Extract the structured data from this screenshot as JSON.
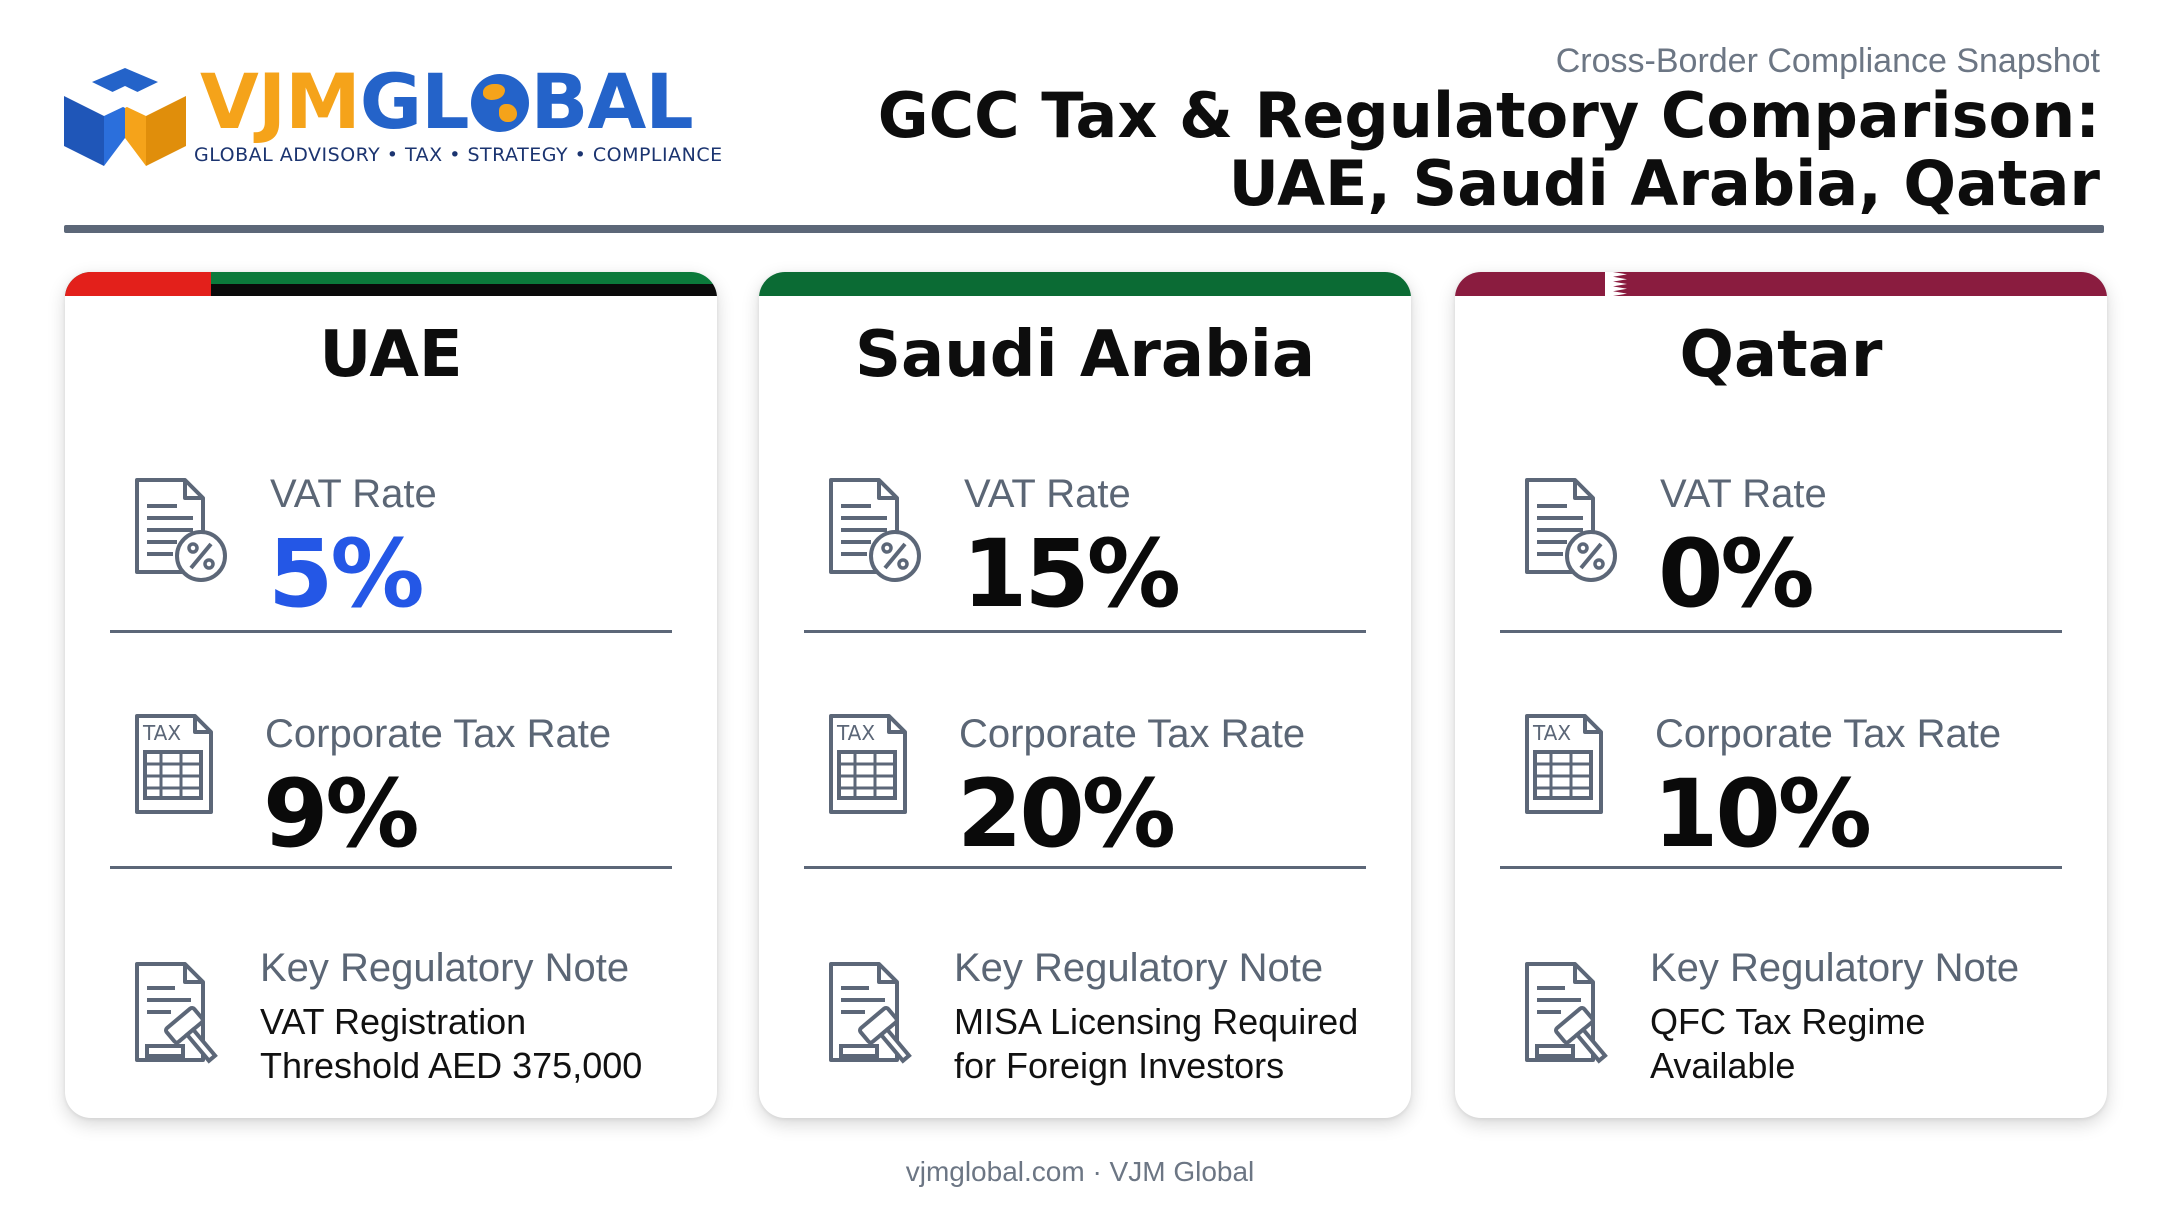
{
  "brand": {
    "name_part1": "VJM",
    "name_part2": "GL",
    "name_part3": "BAL",
    "tagline": "GLOBAL ADVISORY • TAX • STRATEGY • COMPLIANCE",
    "colors": {
      "orange": "#f5a31a",
      "blue": "#2463c9",
      "navy": "#1b3470"
    }
  },
  "header": {
    "kicker": "Cross-Border Compliance Snapshot",
    "title_line1": "GCC Tax & Regulatory Comparison:",
    "title_line2": "UAE, Saudi Arabia, Qatar"
  },
  "cards": [
    {
      "country": "UAE",
      "vat_label": "VAT Rate",
      "vat_value": "5%",
      "ct_label": "Corporate Tax Rate",
      "ct_value": "9%",
      "note_label": "Key Regulatory Note",
      "note_line1": "VAT Registration",
      "note_line2": "Threshold AED 375,000"
    },
    {
      "country": "Saudi Arabia",
      "vat_label": "VAT Rate",
      "vat_value": "15%",
      "ct_label": "Corporate Tax Rate",
      "ct_value": "20%",
      "note_label": "Key Regulatory Note",
      "note_line1": "MISA Licensing Required",
      "note_line2": "for Foreign Investors"
    },
    {
      "country": "Qatar",
      "vat_label": "VAT Rate",
      "vat_value": "0%",
      "ct_label": "Corporate Tax Rate",
      "ct_value": "10%",
      "note_label": "Key Regulatory Note",
      "note_line1": "QFC Tax Regime",
      "note_line2": "Available"
    }
  ],
  "icons": {
    "vat": "document-percent-icon",
    "tax": "tax-form-icon",
    "note": "document-gavel-icon"
  },
  "accent_colors": {
    "uae_value": "#2457e6",
    "ksa_flag": "#0b6b34",
    "qatar_flag": "#8a1c3f",
    "uae_red": "#e3201b"
  },
  "footer": {
    "text": "vjmglobal.com · VJM Global"
  }
}
